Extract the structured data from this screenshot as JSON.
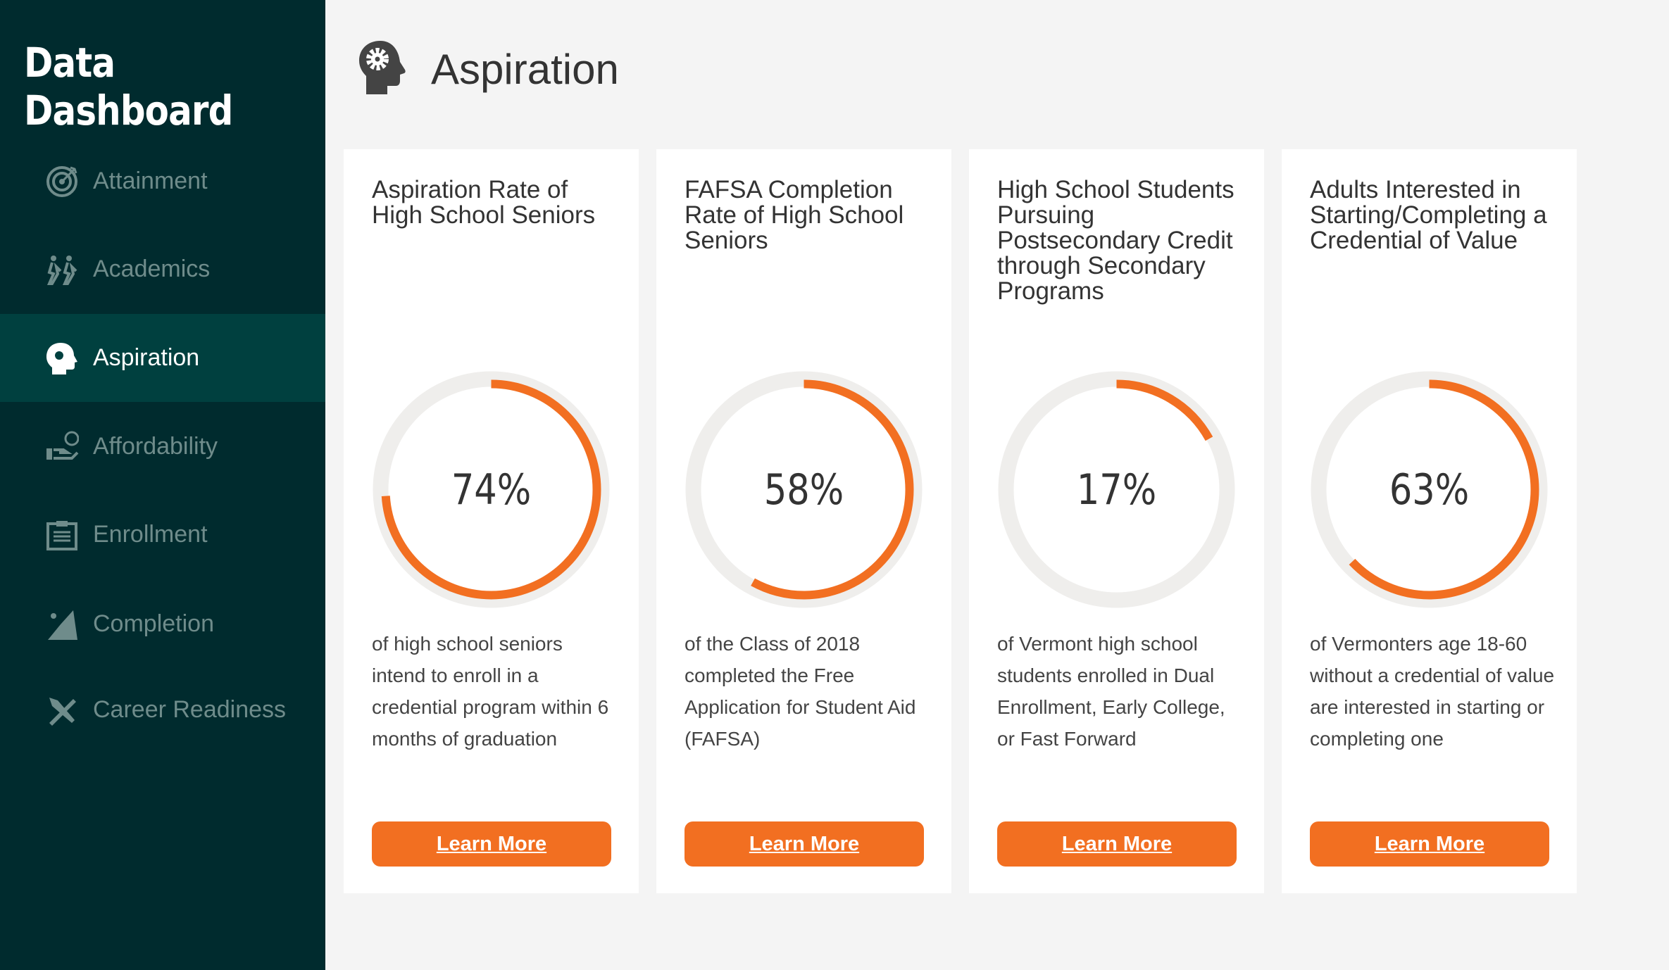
{
  "app_title": "Data Dashboard",
  "page_title": "Aspiration",
  "colors": {
    "sidebar": "#002b2e",
    "active": "#00403f",
    "accent": "#f26f21",
    "track": "#efeeec"
  },
  "nav": [
    {
      "label": "Attainment",
      "icon": "target-icon"
    },
    {
      "label": "Academics",
      "icon": "hikers-icon"
    },
    {
      "label": "Aspiration",
      "icon": "head-gear-icon",
      "active": true
    },
    {
      "label": "Affordability",
      "icon": "hand-money-icon"
    },
    {
      "label": "Enrollment",
      "icon": "clipboard-icon"
    },
    {
      "label": "Completion",
      "icon": "climber-icon"
    },
    {
      "label": "Career Readiness",
      "icon": "tools-icon"
    }
  ],
  "cards": [
    {
      "title": "Aspiration Rate of High School Seniors",
      "percent": 74,
      "percent_label": "74%",
      "description": "of high school seniors intend to enroll in a credential program within 6 months of graduation",
      "button": "Learn More"
    },
    {
      "title": "FAFSA Completion Rate of High School Seniors",
      "percent": 58,
      "percent_label": "58%",
      "description": "of the Class of 2018 completed the Free Application for Student Aid (FAFSA)",
      "button": "Learn More"
    },
    {
      "title": "High School Students Pursuing Postsecondary Credit through Secondary Programs",
      "percent": 17,
      "percent_label": "17%",
      "description": "of Vermont high school students enrolled in Dual Enrollment, Early College, or Fast Forward",
      "button": "Learn More"
    },
    {
      "title": "Adults Interested in Starting/Completing a Credential of Value",
      "percent": 63,
      "percent_label": "63%",
      "description": "of Vermonters age 18-60 without a credential of value are interested in starting or completing one",
      "button": "Learn More"
    }
  ]
}
